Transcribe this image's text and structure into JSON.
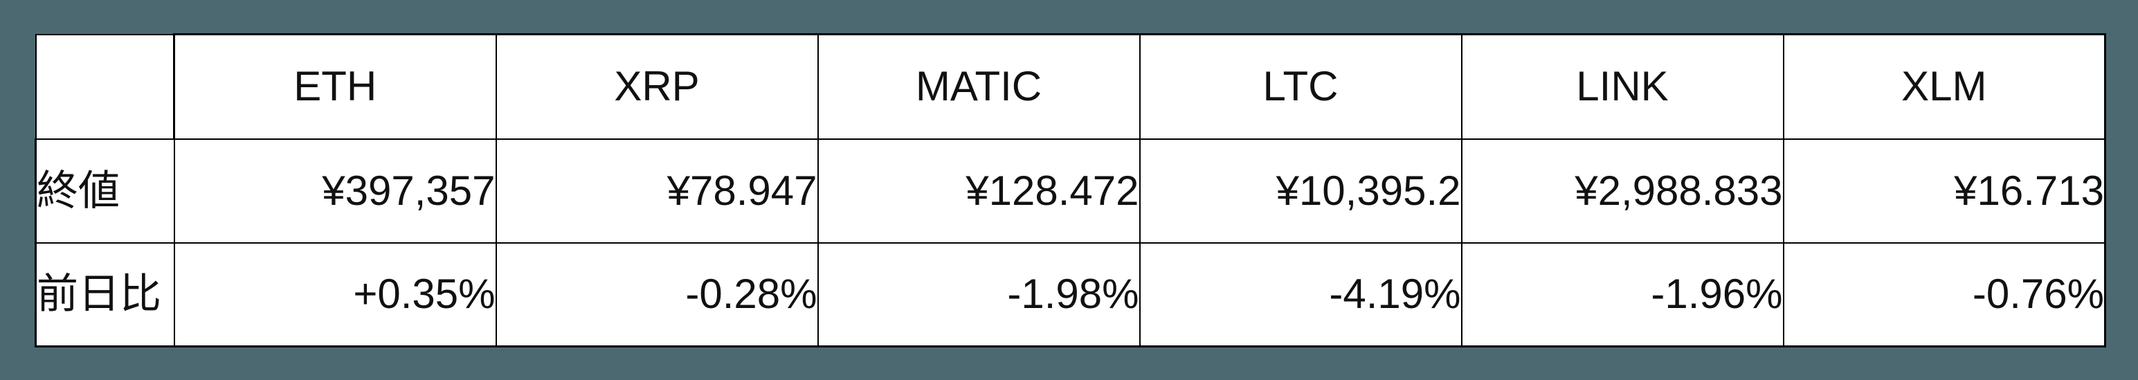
{
  "chart_data": {
    "type": "table",
    "columns": [
      "ETH",
      "XRP",
      "MATIC",
      "LTC",
      "LINK",
      "XLM"
    ],
    "rows": [
      {
        "label": "終値",
        "values": [
          "¥397,357",
          "¥78.947",
          "¥128.472",
          "¥10,395.2",
          "¥2,988.833",
          "¥16.713"
        ]
      },
      {
        "label": "前日比",
        "values": [
          "+0.35%",
          "-0.28%",
          "-1.98%",
          "-4.19%",
          "-1.96%",
          "-0.76%"
        ]
      }
    ],
    "layout_hints": {
      "first_column_role": "row-labels",
      "header_position": "top",
      "value_alignment": "right",
      "grid": "on"
    }
  },
  "colors": {
    "background": "#4C6972",
    "row_header": "#2F9ADB",
    "cell": "#FFFFFF",
    "border": "#000000",
    "text": "#111111"
  }
}
